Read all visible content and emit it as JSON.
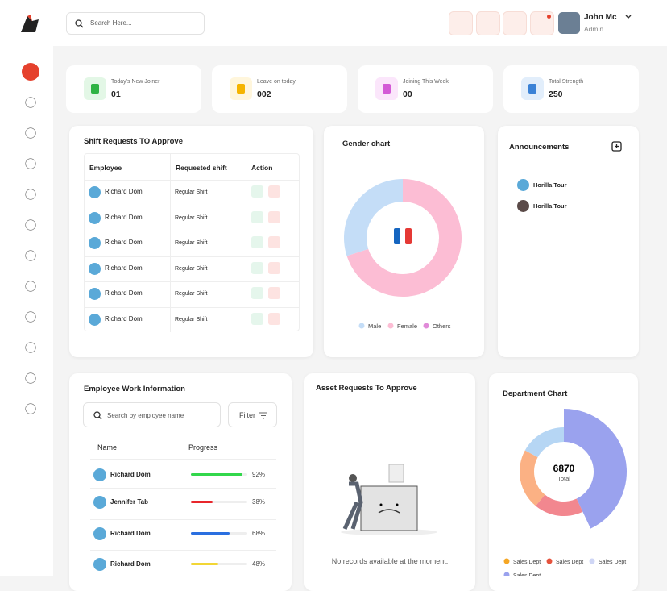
{
  "header": {
    "search_placeholder": "Search Here...",
    "user_name": "John Mc",
    "user_role": "Admin"
  },
  "stats": [
    {
      "label": "Today's New Joiner",
      "value": "01",
      "color": "#2fb344",
      "bg": "#e3f7e6"
    },
    {
      "label": "Leave on today",
      "value": "002",
      "color": "#f5b400",
      "bg": "#fff6dc"
    },
    {
      "label": "Joining This Week",
      "value": "00",
      "color": "#d35ad6",
      "bg": "#fbe6fb"
    },
    {
      "label": "Total Strength",
      "value": "250",
      "color": "#3b82d6",
      "bg": "#e2eefb"
    }
  ],
  "shift_requests": {
    "title": "Shift Requests TO Approve",
    "columns": [
      "Employee",
      "Requested shift",
      "Action"
    ],
    "rows": [
      {
        "employee": "Richard Dom",
        "shift": "Regular Shift"
      },
      {
        "employee": "Richard Dom",
        "shift": "Regular Shift"
      },
      {
        "employee": "Richard Dom",
        "shift": "Regular Shift"
      },
      {
        "employee": "Richard Dom",
        "shift": "Regular Shift"
      },
      {
        "employee": "Richard Dom",
        "shift": "Regular Shift"
      },
      {
        "employee": "Richard Dom",
        "shift": "Regular Shift"
      }
    ]
  },
  "gender_chart": {
    "type": "pie",
    "title": "Gender chart",
    "categories": [
      "Male",
      "Female",
      "Others"
    ],
    "values": [
      30,
      70,
      0
    ],
    "colors": [
      "#c4ddf7",
      "#fcbdd4",
      "#e08ad8"
    ]
  },
  "announcements": {
    "title": "Announcements",
    "items": [
      "Horilla Tour",
      "Horilla Tour"
    ]
  },
  "work_info": {
    "title": "Employee Work Information",
    "search_placeholder": "Search by employee name",
    "filter": "Filter",
    "columns": [
      "Name",
      "Progress"
    ],
    "rows": [
      {
        "name": "Richard Dom",
        "progress": 92,
        "progress_label": "92%",
        "color": "#32d74b"
      },
      {
        "name": "Jennifer Tab",
        "progress": 38,
        "progress_label": "38%",
        "color": "#e8262b"
      },
      {
        "name": "Richard Dom",
        "progress": 68,
        "progress_label": "68%",
        "color": "#2a6fe0"
      },
      {
        "name": "Richard Dom",
        "progress": 48,
        "progress_label": "48%",
        "color": "#f2d635"
      }
    ]
  },
  "asset_requests": {
    "title": "Asset Requests To Approve",
    "empty_text": "No records available at the moment."
  },
  "department_chart": {
    "type": "pie",
    "title": "Department Chart",
    "total": "6870",
    "total_label": "Total",
    "categories": [
      "Sales Dept",
      "Sales Dept",
      "Sales Dept",
      "Sales Dept"
    ],
    "values": [
      43,
      18,
      22,
      17
    ],
    "colors": [
      "#9aa2ee",
      "#f2878f",
      "#fbb184",
      "#b6d6f4"
    ],
    "legend_colors": [
      "#f5a623",
      "#e5533d",
      "#cfd6f5",
      "#9aa2ee"
    ]
  }
}
